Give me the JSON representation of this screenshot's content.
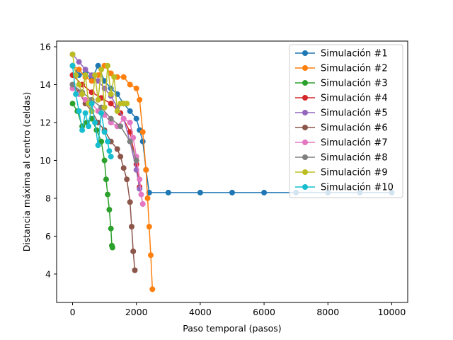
{
  "chart_data": {
    "type": "line",
    "xlabel": "Paso temporal (pasos)",
    "ylabel": "Distancia máxima al centro (celdas)",
    "xlim": [
      -500,
      10500
    ],
    "ylim": [
      2.5,
      16.3
    ],
    "xticks": [
      0,
      2000,
      4000,
      6000,
      8000,
      10000
    ],
    "yticks": [
      4,
      6,
      8,
      10,
      12,
      14,
      16
    ],
    "xtick_labels": [
      "0",
      "2000",
      "4000",
      "6000",
      "8000",
      "10000"
    ],
    "ytick_labels": [
      "4",
      "6",
      "8",
      "10",
      "12",
      "14",
      "16"
    ],
    "grid": false,
    "legend_position": "top-right",
    "series": [
      {
        "name": "Simulación #1",
        "color": "#1f77b4",
        "x": [
          0,
          200,
          400,
          600,
          800,
          1000,
          1200,
          1400,
          1600,
          1800,
          2000,
          2100,
          2200,
          2300,
          2400,
          3000,
          4000,
          5000,
          6000,
          7000,
          8000,
          9000,
          10000
        ],
        "y": [
          15.0,
          14.5,
          14.6,
          14.3,
          15.0,
          14.2,
          13.8,
          13.5,
          13.0,
          12.6,
          12.2,
          11.6,
          11.0,
          9.5,
          8.3,
          8.3,
          8.3,
          8.3,
          8.3,
          8.3,
          8.3,
          8.3,
          8.3
        ]
      },
      {
        "name": "Simulación #2",
        "color": "#ff7f0e",
        "x": [
          0,
          200,
          400,
          600,
          800,
          1000,
          1200,
          1400,
          1600,
          1800,
          2000,
          2100,
          2200,
          2300,
          2350,
          2400,
          2450,
          2500
        ],
        "y": [
          15.0,
          14.8,
          14.4,
          14.2,
          14.5,
          15.0,
          14.6,
          14.4,
          14.4,
          14.0,
          13.8,
          13.2,
          11.5,
          9.5,
          8.0,
          6.5,
          5.0,
          3.2
        ]
      },
      {
        "name": "Simulación #3",
        "color": "#2ca02c",
        "x": [
          0,
          150,
          300,
          450,
          600,
          750,
          900,
          1000,
          1050,
          1100,
          1150,
          1200,
          1230,
          1250
        ],
        "y": [
          13.0,
          12.6,
          11.8,
          12.0,
          12.2,
          11.6,
          11.0,
          10.0,
          9.0,
          8.2,
          7.4,
          6.4,
          5.5,
          5.4
        ]
      },
      {
        "name": "Simulación #4",
        "color": "#d62728",
        "x": [
          0,
          300,
          600,
          900,
          1200,
          1500,
          1800,
          2000,
          2100
        ],
        "y": [
          14.5,
          14.0,
          13.6,
          13.3,
          13.0,
          12.5,
          11.5,
          9.8,
          8.6
        ]
      },
      {
        "name": "Simulación #5",
        "color": "#9467bd",
        "x": [
          0,
          200,
          400,
          600,
          800,
          1000,
          1200,
          1400,
          1600,
          1800,
          2000,
          2100
        ],
        "y": [
          15.6,
          15.2,
          14.8,
          14.5,
          14.2,
          13.8,
          13.4,
          12.8,
          12.2,
          11.0,
          9.5,
          8.5
        ]
      },
      {
        "name": "Simulación #6",
        "color": "#8c564b",
        "x": [
          0,
          200,
          400,
          600,
          800,
          1000,
          1200,
          1400,
          1500,
          1600,
          1700,
          1800,
          1850,
          1900,
          1950
        ],
        "y": [
          14.0,
          13.6,
          13.0,
          12.6,
          12.0,
          11.6,
          11.0,
          10.6,
          10.2,
          9.6,
          9.0,
          7.8,
          6.5,
          5.2,
          4.2
        ]
      },
      {
        "name": "Simulación #7",
        "color": "#e377c2",
        "x": [
          0,
          200,
          400,
          600,
          800,
          1000,
          1200,
          1400,
          1600,
          1800,
          1900,
          2000,
          2100,
          2150,
          2200
        ],
        "y": [
          13.8,
          13.5,
          13.2,
          13.0,
          12.6,
          12.4,
          12.0,
          11.8,
          12.2,
          12.0,
          11.2,
          10.2,
          9.0,
          8.2,
          7.7
        ]
      },
      {
        "name": "Simulación #8",
        "color": "#7f7f7f",
        "x": [
          0,
          300,
          600,
          900,
          1200,
          1500,
          1800,
          2000
        ],
        "y": [
          14.0,
          13.6,
          13.2,
          12.8,
          12.2,
          11.8,
          11.0,
          10.0
        ]
      },
      {
        "name": "Simulación #9",
        "color": "#bcbd22",
        "x": [
          0,
          100,
          200,
          300,
          400,
          500,
          600,
          700,
          800,
          900,
          1000,
          1100,
          1200,
          1300,
          1400,
          1500,
          1600,
          1700
        ],
        "y": [
          15.6,
          14.5,
          14.0,
          13.5,
          14.5,
          13.0,
          12.6,
          14.5,
          13.2,
          14.8,
          12.8,
          15.0,
          13.5,
          14.4,
          12.6,
          13.0,
          13.0,
          13.0
        ]
      },
      {
        "name": "Simulación #10",
        "color": "#17becf",
        "x": [
          0,
          100,
          200,
          300,
          400,
          500,
          600,
          700,
          800,
          900,
          1000,
          1100,
          1150,
          1200
        ],
        "y": [
          15.0,
          13.5,
          12.6,
          11.6,
          12.5,
          11.8,
          13.0,
          12.0,
          10.8,
          12.5,
          11.5,
          11.0,
          10.5,
          10.2
        ]
      }
    ]
  }
}
